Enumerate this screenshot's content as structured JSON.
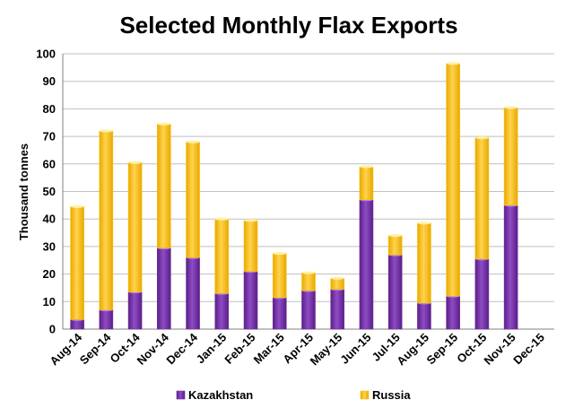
{
  "chart_data": {
    "type": "bar",
    "stacked": true,
    "title": "Selected Monthly Flax Exports",
    "ylabel": "Thousand tonnes",
    "xlabel": "",
    "ylim": [
      0,
      100
    ],
    "yticks": [
      0,
      10,
      20,
      30,
      40,
      50,
      60,
      70,
      80,
      90,
      100
    ],
    "grid": true,
    "legend_position": "bottom",
    "categories": [
      "Aug-14",
      "Sep-14",
      "Oct-14",
      "Nov-14",
      "Dec-14",
      "Jan-15",
      "Feb-15",
      "Mar-15",
      "Apr-15",
      "May-15",
      "Jun-15",
      "Jul-15",
      "Aug-15",
      "Sep-15",
      "Oct-15",
      "Nov-15",
      "Dec-15"
    ],
    "series": [
      {
        "name": "Kazakhstan",
        "color": "#7030a0",
        "values": [
          3.5,
          7,
          13.5,
          29.5,
          26,
          13,
          21,
          11.5,
          14,
          14.5,
          47,
          27,
          9.5,
          12,
          25.5,
          45,
          0
        ]
      },
      {
        "name": "Russia",
        "color": "#ffc000",
        "values": [
          41,
          65,
          47,
          45,
          42,
          27,
          18.5,
          16,
          6.5,
          4,
          12,
          7,
          29,
          84.5,
          44,
          35.5,
          0
        ]
      }
    ]
  }
}
